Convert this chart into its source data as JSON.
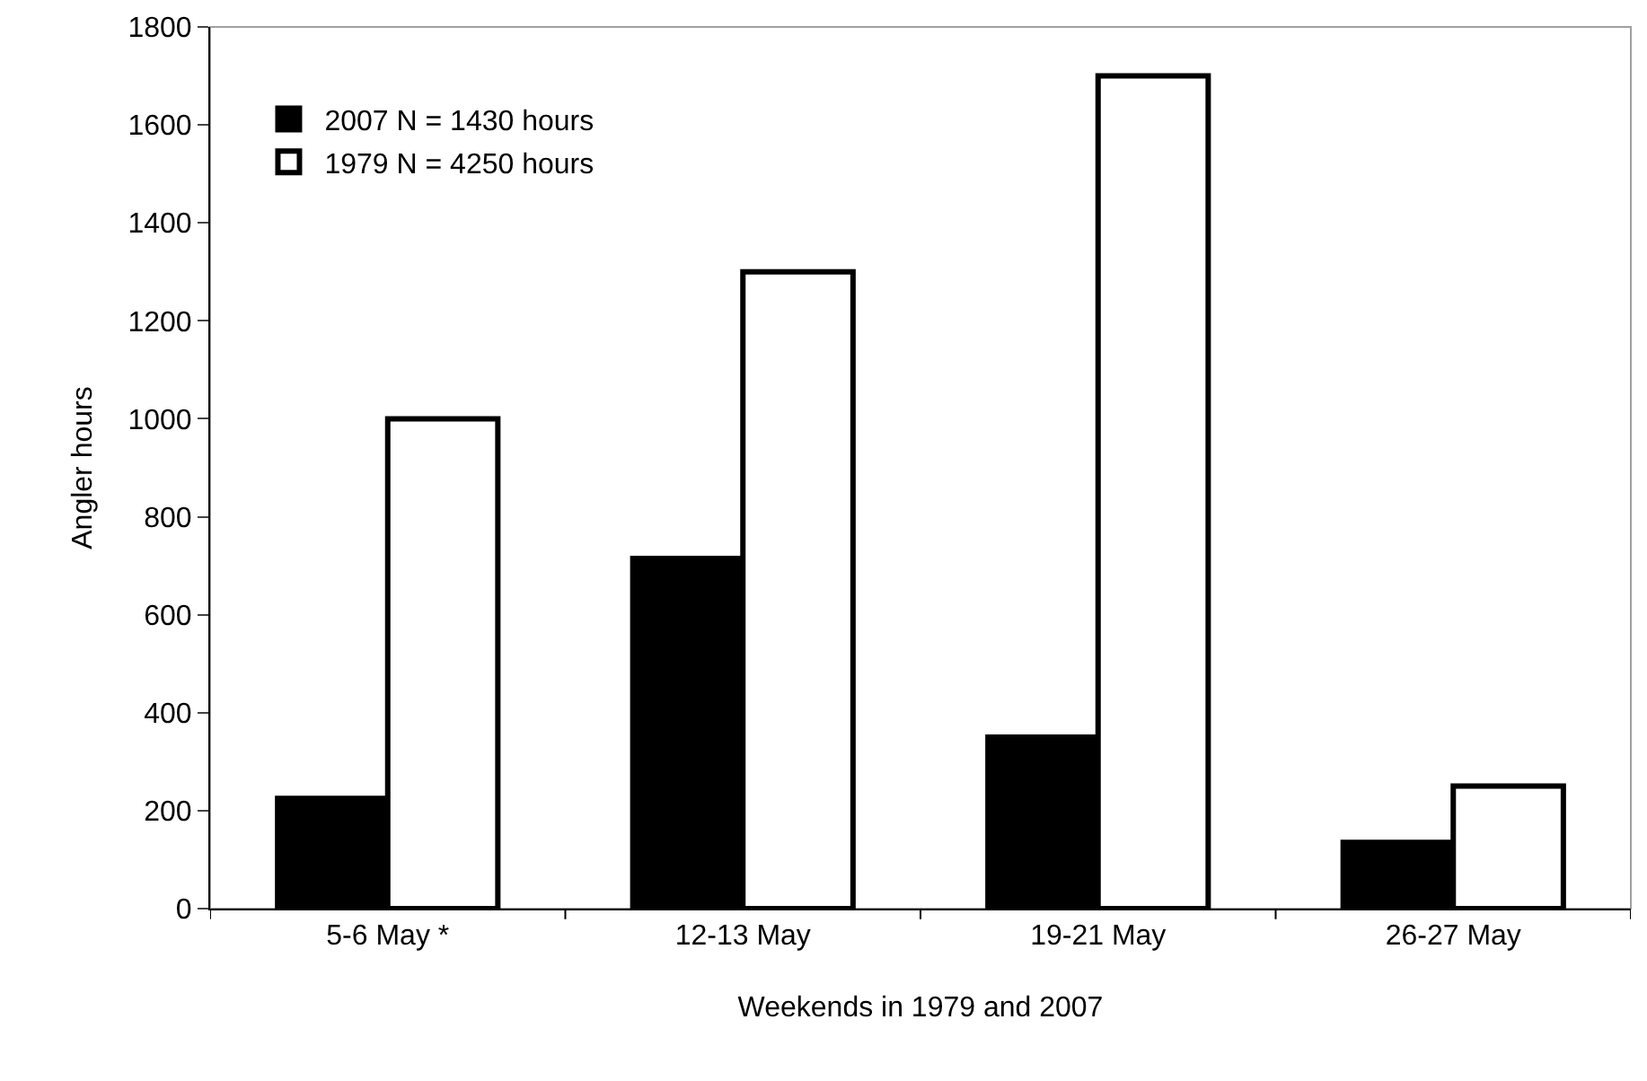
{
  "chart_data": {
    "type": "bar",
    "xlabel": "Weekends in 1979 and 2007",
    "ylabel": "Angler hours",
    "categories": [
      "5-6 May *",
      "12-13 May",
      "19-21 May",
      "26-27 May"
    ],
    "series": [
      {
        "name": "2007 N = 1430 hours",
        "color": "#000000",
        "values": [
          225,
          715,
          350,
          135
        ]
      },
      {
        "name": "1979 N = 4250 hours",
        "color": "#ffffff",
        "values": [
          1000,
          1300,
          1700,
          250
        ]
      }
    ],
    "ylim": [
      0,
      1800
    ],
    "yticks": [
      0,
      200,
      400,
      600,
      800,
      1000,
      1200,
      1400,
      1600,
      1800
    ],
    "grid": false,
    "legend": "top left"
  }
}
